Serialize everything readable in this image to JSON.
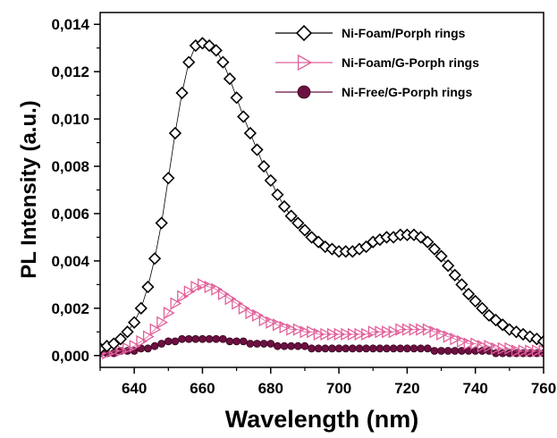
{
  "chart_data": {
    "type": "scatter",
    "title": "",
    "xlabel": "Wavelength (nm)",
    "ylabel": "PL Intensity (a.u.)",
    "xlim": [
      630,
      760
    ],
    "ylim": [
      -0.0005,
      0.0145
    ],
    "x_ticks": [
      640,
      660,
      680,
      700,
      720,
      740,
      760
    ],
    "x_tick_labels": [
      "640",
      "660",
      "680",
      "700",
      "720",
      "740",
      "760"
    ],
    "y_ticks": [
      0,
      0.002,
      0.004,
      0.006,
      0.008,
      0.01,
      0.012,
      0.014
    ],
    "y_tick_labels": [
      "0,000",
      "0,002",
      "0,004",
      "0,006",
      "0,008",
      "0,010",
      "0,012",
      "0,014"
    ],
    "grid": false,
    "legend_position": "top-right",
    "x": [
      630,
      632,
      634,
      636,
      638,
      640,
      642,
      644,
      646,
      648,
      650,
      652,
      654,
      656,
      658,
      660,
      662,
      664,
      666,
      668,
      670,
      672,
      674,
      676,
      678,
      680,
      682,
      684,
      686,
      688,
      690,
      692,
      694,
      696,
      698,
      700,
      702,
      704,
      706,
      708,
      710,
      712,
      714,
      716,
      718,
      720,
      722,
      724,
      726,
      728,
      730,
      732,
      734,
      736,
      738,
      740,
      742,
      744,
      746,
      748,
      750,
      752,
      754,
      756,
      758,
      760
    ],
    "series": [
      {
        "name": "Ni-Foam/Porph rings",
        "color": "#000000",
        "marker": "diamond-open",
        "values": [
          0.0003,
          0.0004,
          0.0005,
          0.0007,
          0.001,
          0.0014,
          0.002,
          0.0029,
          0.0041,
          0.0056,
          0.0075,
          0.0094,
          0.0111,
          0.0124,
          0.0131,
          0.0132,
          0.0131,
          0.0129,
          0.0124,
          0.0117,
          0.0109,
          0.0101,
          0.0094,
          0.0087,
          0.008,
          0.0074,
          0.0068,
          0.0063,
          0.0059,
          0.0056,
          0.0053,
          0.005,
          0.0048,
          0.0046,
          0.0045,
          0.0044,
          0.0044,
          0.0044,
          0.0045,
          0.0046,
          0.0048,
          0.0049,
          0.005,
          0.005,
          0.0051,
          0.0051,
          0.0051,
          0.005,
          0.0048,
          0.0045,
          0.0042,
          0.0038,
          0.0034,
          0.003,
          0.0026,
          0.0023,
          0.002,
          0.0017,
          0.0015,
          0.0013,
          0.0011,
          0.001,
          0.0009,
          0.0008,
          0.0007,
          0.0006
        ]
      },
      {
        "name": "Ni-Foam/G-Porph rings",
        "color": "#e0609a",
        "marker": "triangle-open",
        "values": [
          0.0001,
          0.0001,
          0.0002,
          0.0002,
          0.0003,
          0.0004,
          0.0006,
          0.0008,
          0.0011,
          0.0014,
          0.0018,
          0.0022,
          0.0025,
          0.0027,
          0.0029,
          0.003,
          0.0029,
          0.0028,
          0.0026,
          0.0024,
          0.0022,
          0.002,
          0.0018,
          0.0017,
          0.0015,
          0.0014,
          0.0013,
          0.0012,
          0.0011,
          0.0011,
          0.001,
          0.001,
          0.0009,
          0.0009,
          0.0009,
          0.0009,
          0.0009,
          0.0009,
          0.0009,
          0.0009,
          0.001,
          0.001,
          0.001,
          0.001,
          0.0011,
          0.0011,
          0.0011,
          0.0011,
          0.0011,
          0.001,
          0.0009,
          0.0008,
          0.0007,
          0.0006,
          0.0005,
          0.0005,
          0.0004,
          0.0004,
          0.0003,
          0.0003,
          0.0003,
          0.0002,
          0.0002,
          0.0002,
          0.0002,
          0.0002
        ]
      },
      {
        "name": "Ni-Free/G-Porph rings",
        "color": "#6b1040",
        "marker": "circle-filled",
        "values": [
          0.0001,
          0.0001,
          0.0001,
          0.0002,
          0.0002,
          0.0002,
          0.0003,
          0.0003,
          0.0004,
          0.0005,
          0.0006,
          0.0006,
          0.0007,
          0.0007,
          0.0007,
          0.0007,
          0.0007,
          0.0007,
          0.0007,
          0.0006,
          0.0006,
          0.0006,
          0.0005,
          0.0005,
          0.0005,
          0.0005,
          0.0004,
          0.0004,
          0.0004,
          0.0004,
          0.0004,
          0.0003,
          0.0003,
          0.0003,
          0.0003,
          0.0003,
          0.0003,
          0.0003,
          0.0003,
          0.0003,
          0.0003,
          0.0003,
          0.0003,
          0.0003,
          0.0003,
          0.0003,
          0.0003,
          0.0003,
          0.0003,
          0.0002,
          0.0002,
          0.0002,
          0.0002,
          0.0002,
          0.0002,
          0.0002,
          0.0002,
          0.0002,
          0.0001,
          0.0001,
          0.0001,
          0.0001,
          0.0001,
          0.0001,
          0.0001,
          0.0001
        ]
      }
    ]
  }
}
